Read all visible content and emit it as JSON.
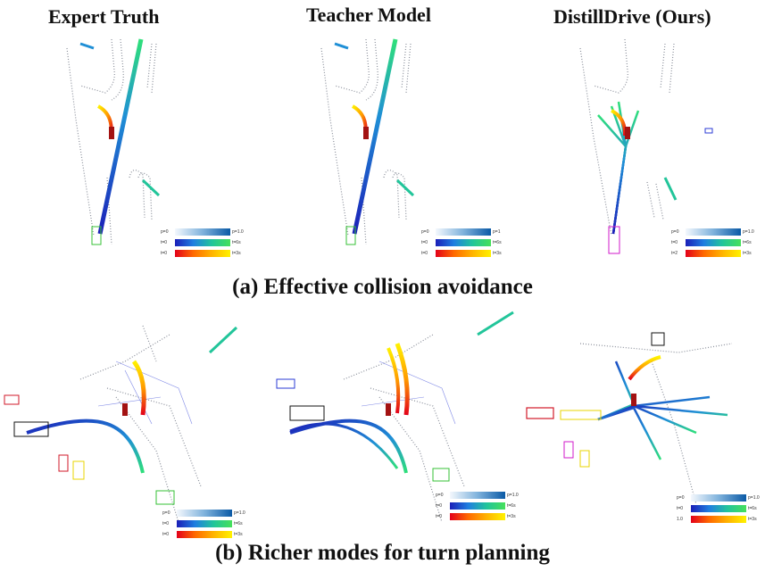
{
  "columns": [
    {
      "title": "Expert Truth"
    },
    {
      "title": "Teacher Model"
    },
    {
      "title": "DistillDrive (Ours)"
    }
  ],
  "captions": {
    "a": "(a) Effective collision avoidance",
    "b": "(b) Richer modes for turn planning"
  },
  "legends": [
    {
      "p_left": "p=0",
      "p_right": "p=1.0",
      "t1_left": "t=0",
      "t1_right": "t=6s",
      "t2_left": "t=0",
      "t2_right": "t=3s"
    },
    {
      "p_left": "p=0",
      "p_right": "p=1",
      "t1_left": "t=0",
      "t1_right": "t=6s",
      "t2_left": "t=0",
      "t2_right": "t=3s"
    },
    {
      "p_left": "p=0",
      "p_right": "p=1.0",
      "t1_left": "t=0",
      "t1_right": "t=6s",
      "t2_left": "t=2",
      "t2_right": "t=3s"
    },
    {
      "p_left": "p=0",
      "p_right": "p=1.0",
      "t1_left": "t=0",
      "t1_right": "t=6s",
      "t2_left": "t=0",
      "t2_right": "t=3s"
    },
    {
      "p_left": "p=0",
      "p_right": "p=1.0",
      "t1_left": "t=0",
      "t1_right": "t=6s",
      "t2_left": "t=0",
      "t2_right": "t=3s"
    },
    {
      "p_left": "p=0",
      "p_right": "p=1.0",
      "t1_left": "t=0",
      "t1_right": "t=6s",
      "t2_left": "1.0",
      "t2_right": "t=3s"
    }
  ],
  "colors": {
    "lane": "#8a8f9a",
    "ego": "#a31212",
    "plan_start": "#1b1fb8",
    "plan_end": "#2fe07a",
    "agent_box_blue": "#2b3bd6",
    "agent_box_red": "#d21a2a",
    "agent_box_green": "#35c036",
    "agent_box_magenta": "#d21acb",
    "agent_box_yellow": "#e8d400",
    "agent_box_black": "#111111"
  }
}
